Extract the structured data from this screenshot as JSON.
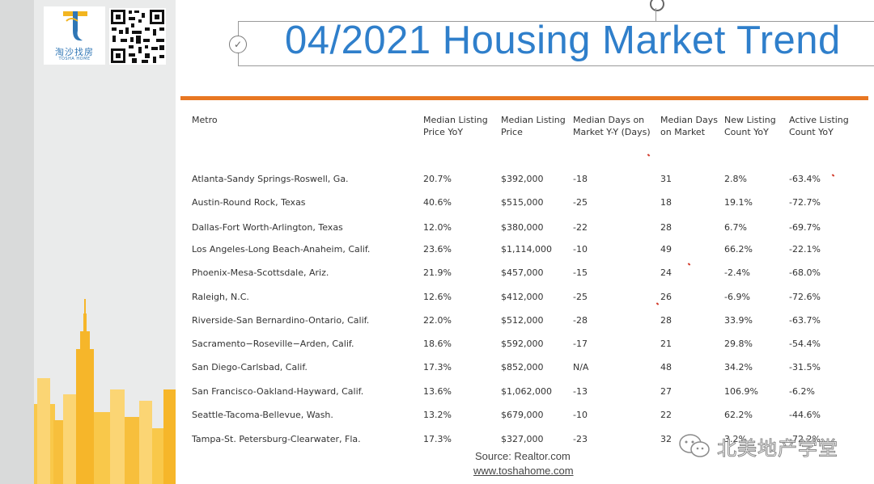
{
  "logo": {
    "cn_name": "淘沙找房",
    "en_name": "TOSHA HOME"
  },
  "title": "04/2021 Housing Market Trend",
  "table": {
    "headers": [
      "Metro",
      "Median Listing Price YoY",
      "Median Listing Price",
      "Median Days on Market Y-Y (Days)",
      "Median Days on Market",
      "New Listing Count YoY",
      "Active Listing Count YoY"
    ],
    "rows": [
      [
        "Atlanta-Sandy Springs-Roswell, Ga.",
        "20.7%",
        "$392,000",
        "-18",
        "31",
        "2.8%",
        "-63.4%"
      ],
      [
        "Austin-Round Rock, Texas",
        "40.6%",
        "$515,000",
        "-25",
        "18",
        "19.1%",
        "-72.7%"
      ],
      [
        "Dallas-Fort Worth-Arlington, Texas",
        "12.0%",
        "$380,000",
        "-22",
        "28",
        "6.7%",
        "-69.7%"
      ],
      [
        "Los Angeles-Long Beach-Anaheim, Calif.",
        "23.6%",
        "$1,114,000",
        "-10",
        "49",
        "66.2%",
        "-22.1%"
      ],
      [
        "Phoenix-Mesa-Scottsdale, Ariz.",
        "21.9%",
        "$457,000",
        "-15",
        "24",
        "-2.4%",
        "-68.0%"
      ],
      [
        "Raleigh, N.C.",
        "12.6%",
        "$412,000",
        "-25",
        "26",
        "-6.9%",
        "-72.6%"
      ],
      [
        "Riverside-San Bernardino-Ontario, Calif.",
        "22.0%",
        "$512,000",
        "-28",
        "28",
        "33.9%",
        "-63.7%"
      ],
      [
        "Sacramento−Roseville−Arden, Calif.",
        "18.6%",
        "$592,000",
        "-17",
        "21",
        "29.8%",
        "-54.4%"
      ],
      [
        "San Diego-Carlsbad, Calif.",
        "17.3%",
        "$852,000",
        "N/A",
        "48",
        "34.2%",
        "-31.5%"
      ],
      [
        "San Francisco-Oakland-Hayward, Calif.",
        "13.6%",
        "$1,062,000",
        "-13",
        "27",
        "106.9%",
        "-6.2%"
      ],
      [
        "Seattle-Tacoma-Bellevue, Wash.",
        "13.2%",
        "$679,000",
        "-10",
        "22",
        "62.2%",
        "-44.6%"
      ],
      [
        "Tampa-St. Petersburg-Clearwater, Fla.",
        "17.3%",
        "$327,000",
        "-23",
        "32",
        "3.2%",
        "-72.2%"
      ]
    ]
  },
  "source": "Source: Realtor.com",
  "website": "www.toshahome.com",
  "watermark": "北美地产学堂",
  "colors": {
    "title": "#2f7fcb",
    "rule": "#e87722",
    "skyline": "#f6b62a"
  }
}
